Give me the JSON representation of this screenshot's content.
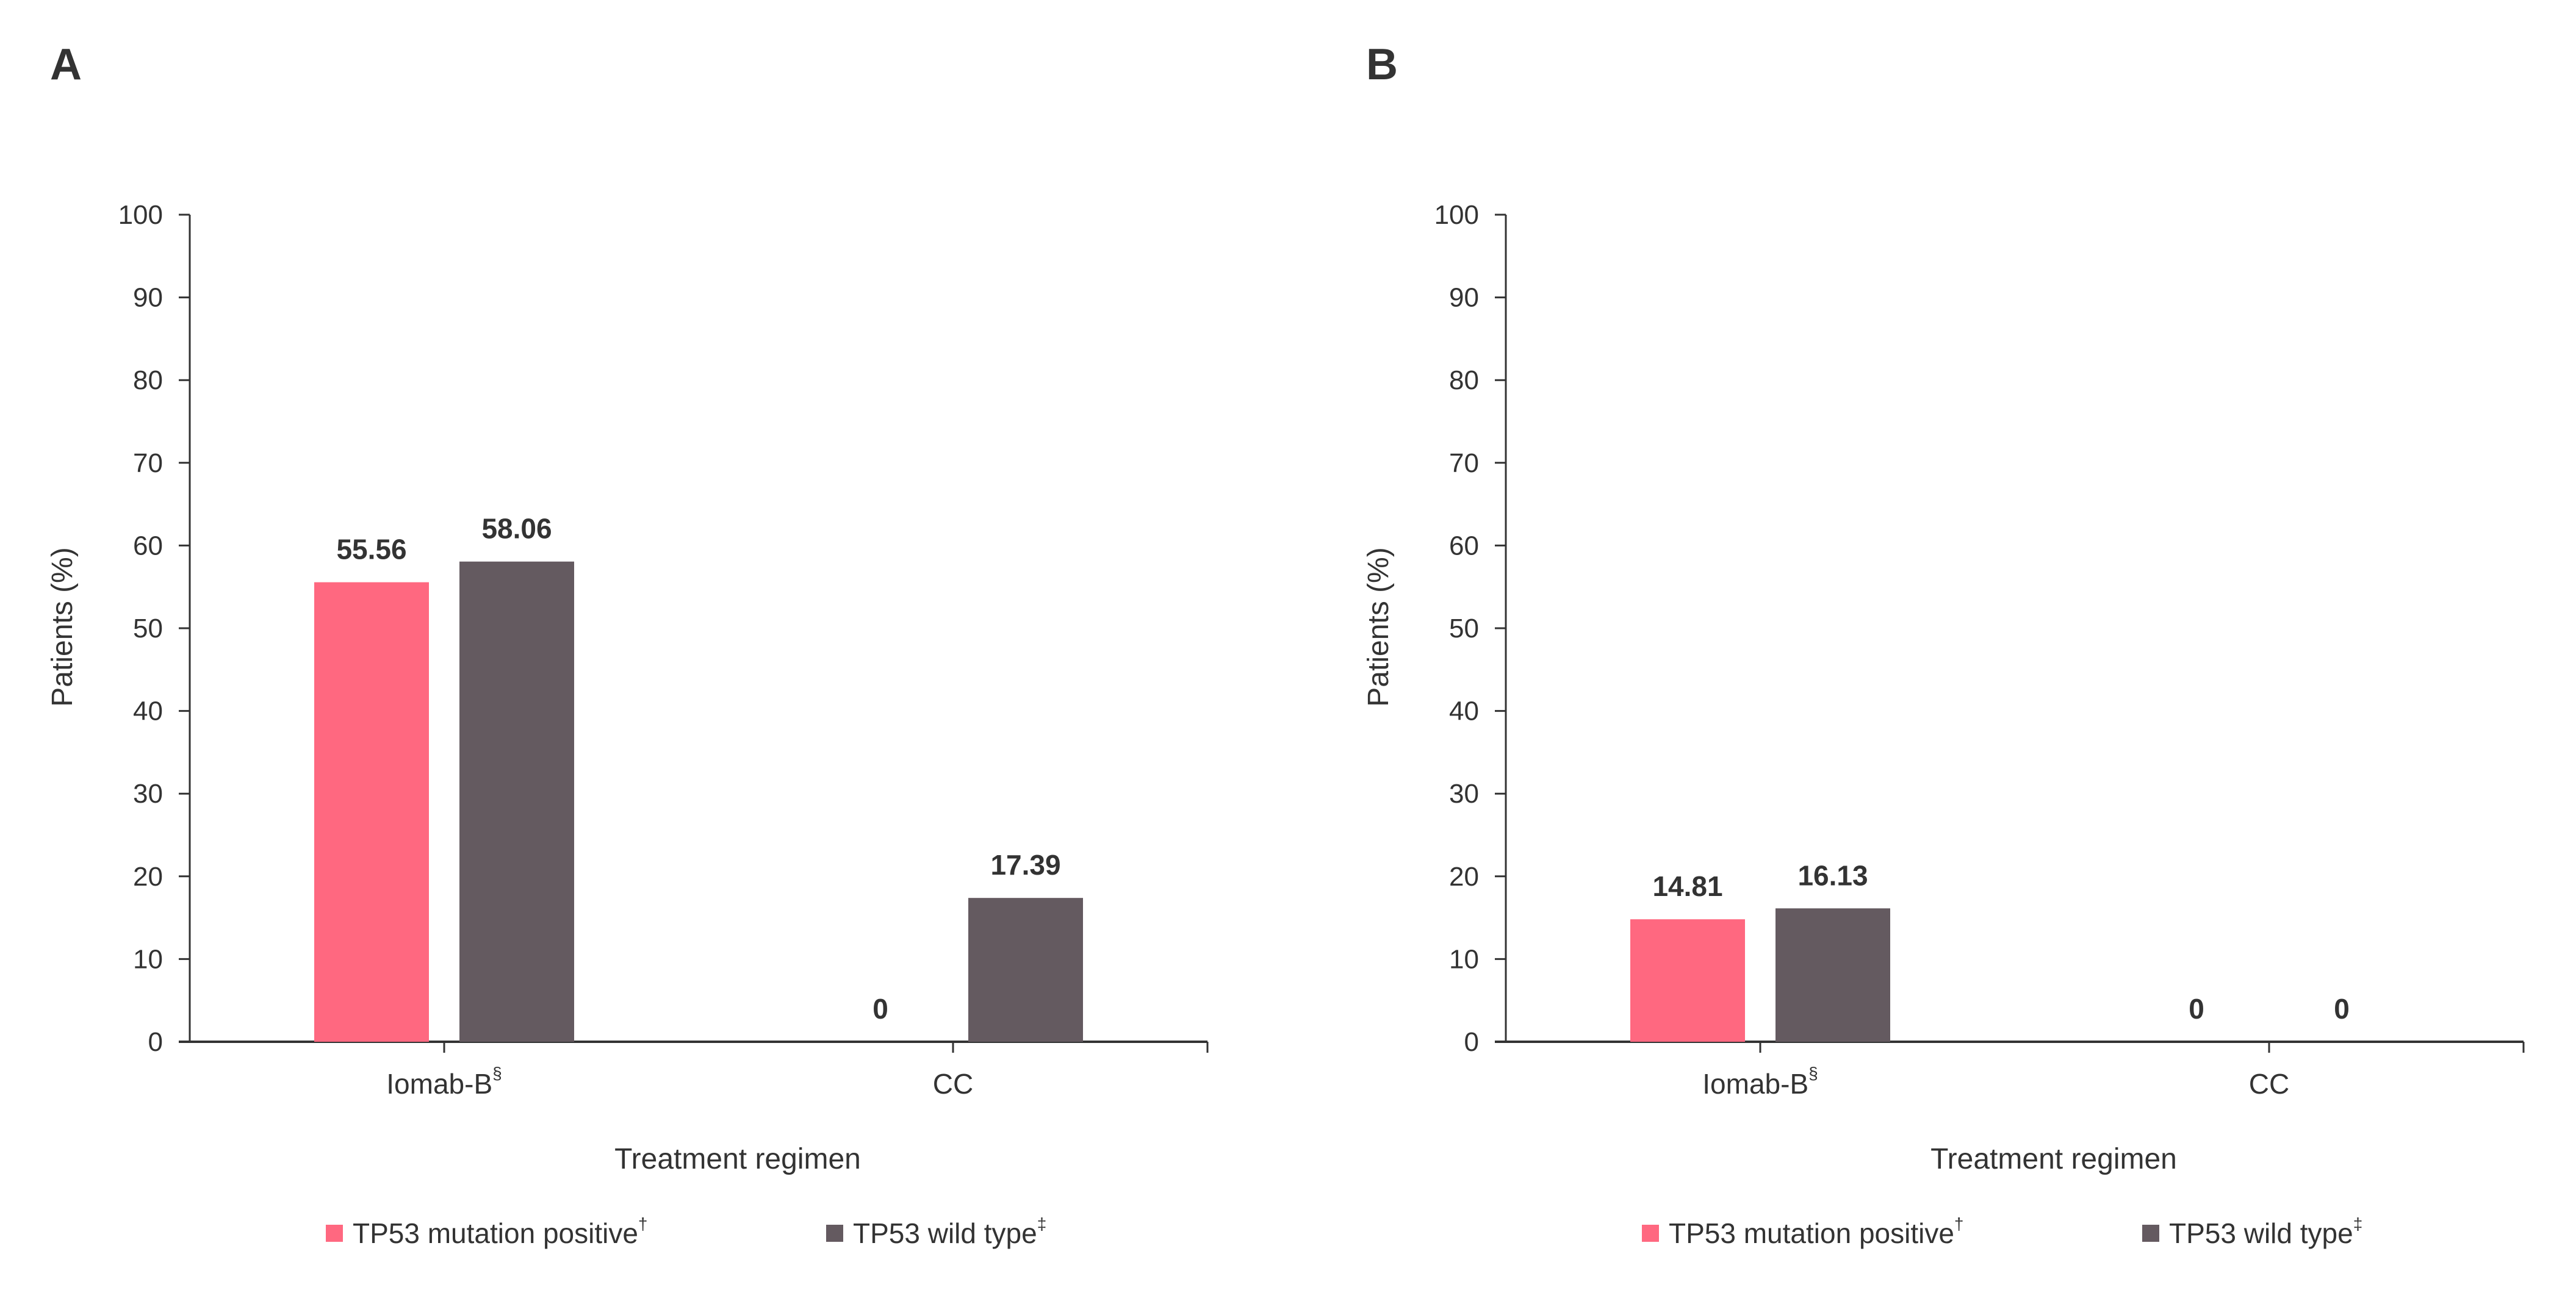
{
  "colors": {
    "mutation": "#FF6880",
    "wild": "#645A60",
    "axis": "#333333"
  },
  "chart_data": [
    {
      "type": "bar",
      "panel_label": "A",
      "categories": [
        "Iomab-B",
        "CC"
      ],
      "category_superscripts": [
        "§",
        ""
      ],
      "series": [
        {
          "name": "TP53 mutation positive",
          "superscript": "†",
          "values": [
            55.56,
            0
          ]
        },
        {
          "name": "TP53 wild type",
          "superscript": "‡",
          "values": [
            58.06,
            17.39
          ]
        }
      ],
      "data_labels": [
        [
          "55.56",
          "0"
        ],
        [
          "58.06",
          "17.39"
        ]
      ],
      "xlabel": "Treatment regimen",
      "ylabel": "Patients (%)",
      "ylim": [
        0,
        100
      ],
      "yticks": [
        "0",
        "10",
        "20",
        "30",
        "40",
        "50",
        "60",
        "70",
        "80",
        "90",
        "100"
      ],
      "grid": false,
      "legend": "bottom"
    },
    {
      "type": "bar",
      "panel_label": "B",
      "categories": [
        "Iomab-B",
        "CC"
      ],
      "category_superscripts": [
        "§",
        ""
      ],
      "series": [
        {
          "name": "TP53 mutation positive",
          "superscript": "†",
          "values": [
            14.81,
            0
          ]
        },
        {
          "name": "TP53 wild type",
          "superscript": "‡",
          "values": [
            16.13,
            0
          ]
        }
      ],
      "data_labels": [
        [
          "14.81",
          "0"
        ],
        [
          "16.13",
          "0"
        ]
      ],
      "xlabel": "Treatment regimen",
      "ylabel": "Patients (%)",
      "ylim": [
        0,
        100
      ],
      "yticks": [
        "0",
        "10",
        "20",
        "30",
        "40",
        "50",
        "60",
        "70",
        "80",
        "90",
        "100"
      ],
      "grid": false,
      "legend": "bottom"
    }
  ]
}
